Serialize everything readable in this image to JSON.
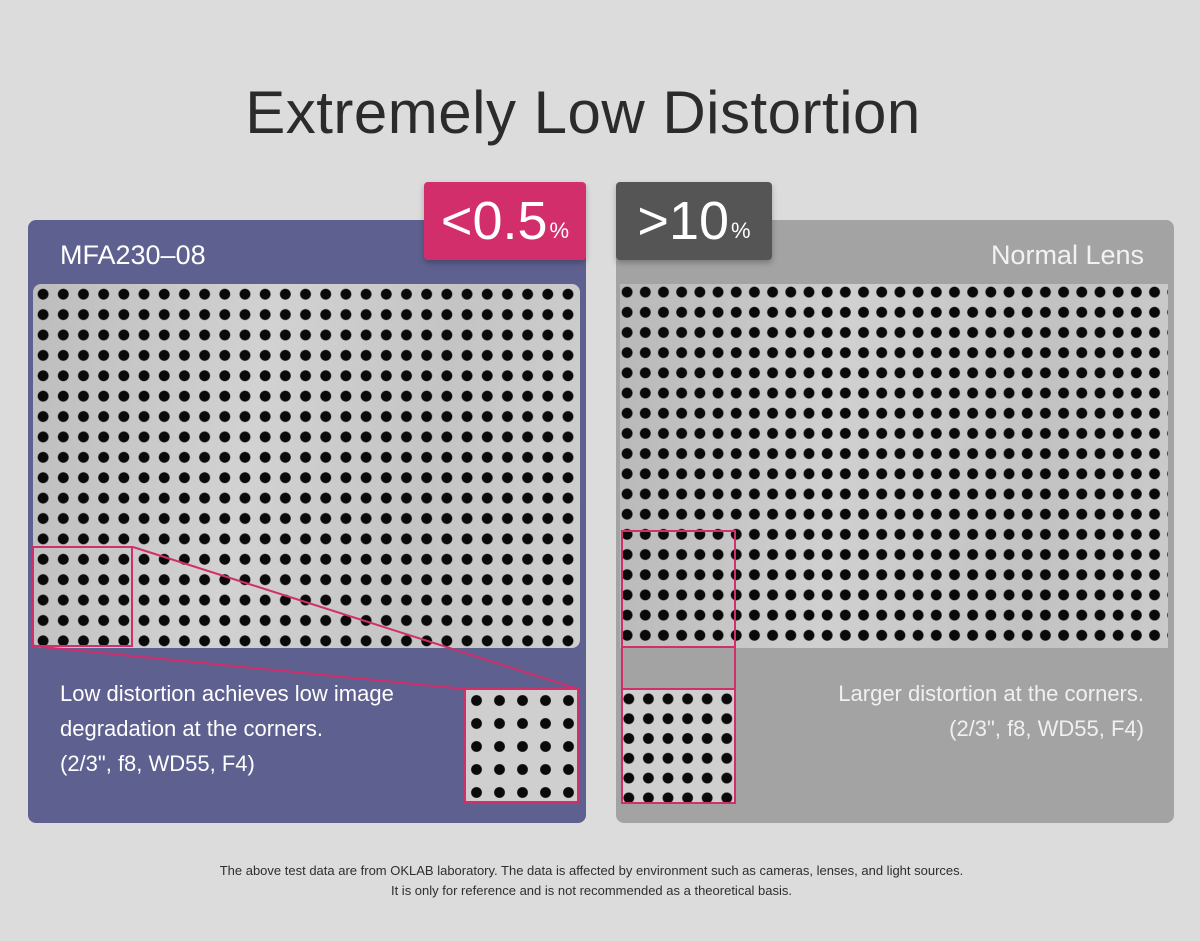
{
  "title": "Extremely Low Distortion",
  "left": {
    "label": "MFA230–08",
    "badge_value": "<0.5",
    "badge_unit": "%",
    "desc_line1": "Low distortion achieves low image",
    "desc_line2": "degradation at the corners.",
    "desc_line3": "(2/3\", f8, WD55, F4)"
  },
  "right": {
    "label": "Normal Lens",
    "badge_value": ">10",
    "badge_unit": "%",
    "desc_line1": "Larger distortion at the corners.",
    "desc_line2": "(2/3\", f8, WD55, F4)"
  },
  "footnote": {
    "line1": "The above test data are from OKLAB laboratory. The data is affected by environment such as cameras, lenses, and light sources.",
    "line2": "It is only for reference and is not recommended as a theoretical basis."
  },
  "colors": {
    "accent": "#d32e6c",
    "left_panel": "#5e6090",
    "right_panel": "#a3a3a3",
    "right_badge": "#555555"
  }
}
